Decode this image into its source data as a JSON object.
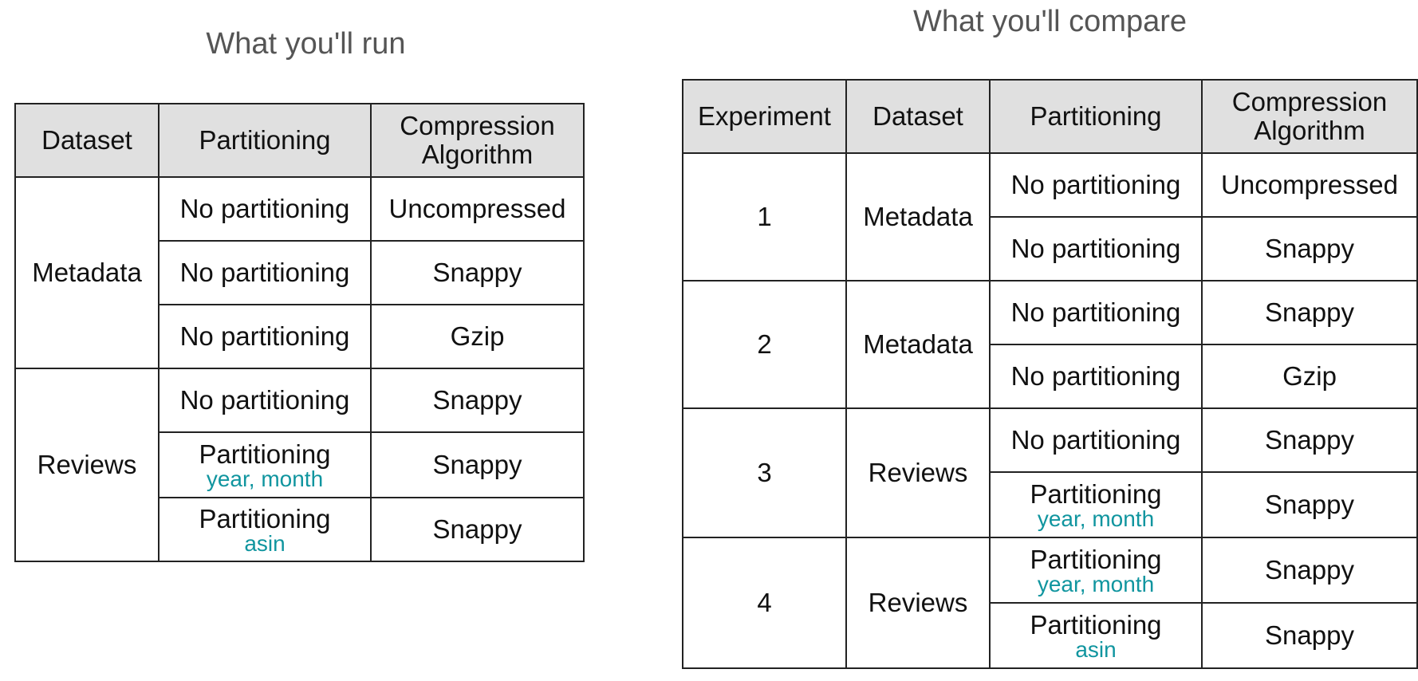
{
  "left": {
    "title": "What you'll run",
    "headers": [
      "Dataset",
      "Partitioning",
      "Compression Algorithm"
    ],
    "groups": [
      {
        "dataset": "Metadata",
        "rows": [
          {
            "partitioning": "No partitioning",
            "partition_keys": "",
            "compression": "Uncompressed"
          },
          {
            "partitioning": "No partitioning",
            "partition_keys": "",
            "compression": "Snappy"
          },
          {
            "partitioning": "No partitioning",
            "partition_keys": "",
            "compression": "Gzip"
          }
        ]
      },
      {
        "dataset": "Reviews",
        "rows": [
          {
            "partitioning": "No partitioning",
            "partition_keys": "",
            "compression": "Snappy"
          },
          {
            "partitioning": "Partitioning",
            "partition_keys": "year, month",
            "compression": "Snappy"
          },
          {
            "partitioning": "Partitioning",
            "partition_keys": "asin",
            "compression": "Snappy"
          }
        ]
      }
    ]
  },
  "right": {
    "title": "What you'll compare",
    "headers": [
      "Experiment",
      "Dataset",
      "Partitioning",
      "Compression Algorithm"
    ],
    "experiments": [
      {
        "experiment": "1",
        "dataset": "Metadata",
        "rows": [
          {
            "partitioning": "No partitioning",
            "partition_keys": "",
            "compression": "Uncompressed"
          },
          {
            "partitioning": "No partitioning",
            "partition_keys": "",
            "compression": "Snappy"
          }
        ]
      },
      {
        "experiment": "2",
        "dataset": "Metadata",
        "rows": [
          {
            "partitioning": "No partitioning",
            "partition_keys": "",
            "compression": "Snappy"
          },
          {
            "partitioning": "No partitioning",
            "partition_keys": "",
            "compression": "Gzip"
          }
        ]
      },
      {
        "experiment": "3",
        "dataset": "Reviews",
        "rows": [
          {
            "partitioning": "No partitioning",
            "partition_keys": "",
            "compression": "Snappy"
          },
          {
            "partitioning": "Partitioning",
            "partition_keys": "year, month",
            "compression": "Snappy"
          }
        ]
      },
      {
        "experiment": "4",
        "dataset": "Reviews",
        "rows": [
          {
            "partitioning": "Partitioning",
            "partition_keys": "year, month",
            "compression": "Snappy"
          },
          {
            "partitioning": "Partitioning",
            "partition_keys": "asin",
            "compression": "Snappy"
          }
        ]
      }
    ]
  },
  "colors": {
    "header_bg": "#e0e0e0",
    "title_text": "#555555",
    "partition_key_text": "#10959f",
    "border": "#222222"
  }
}
